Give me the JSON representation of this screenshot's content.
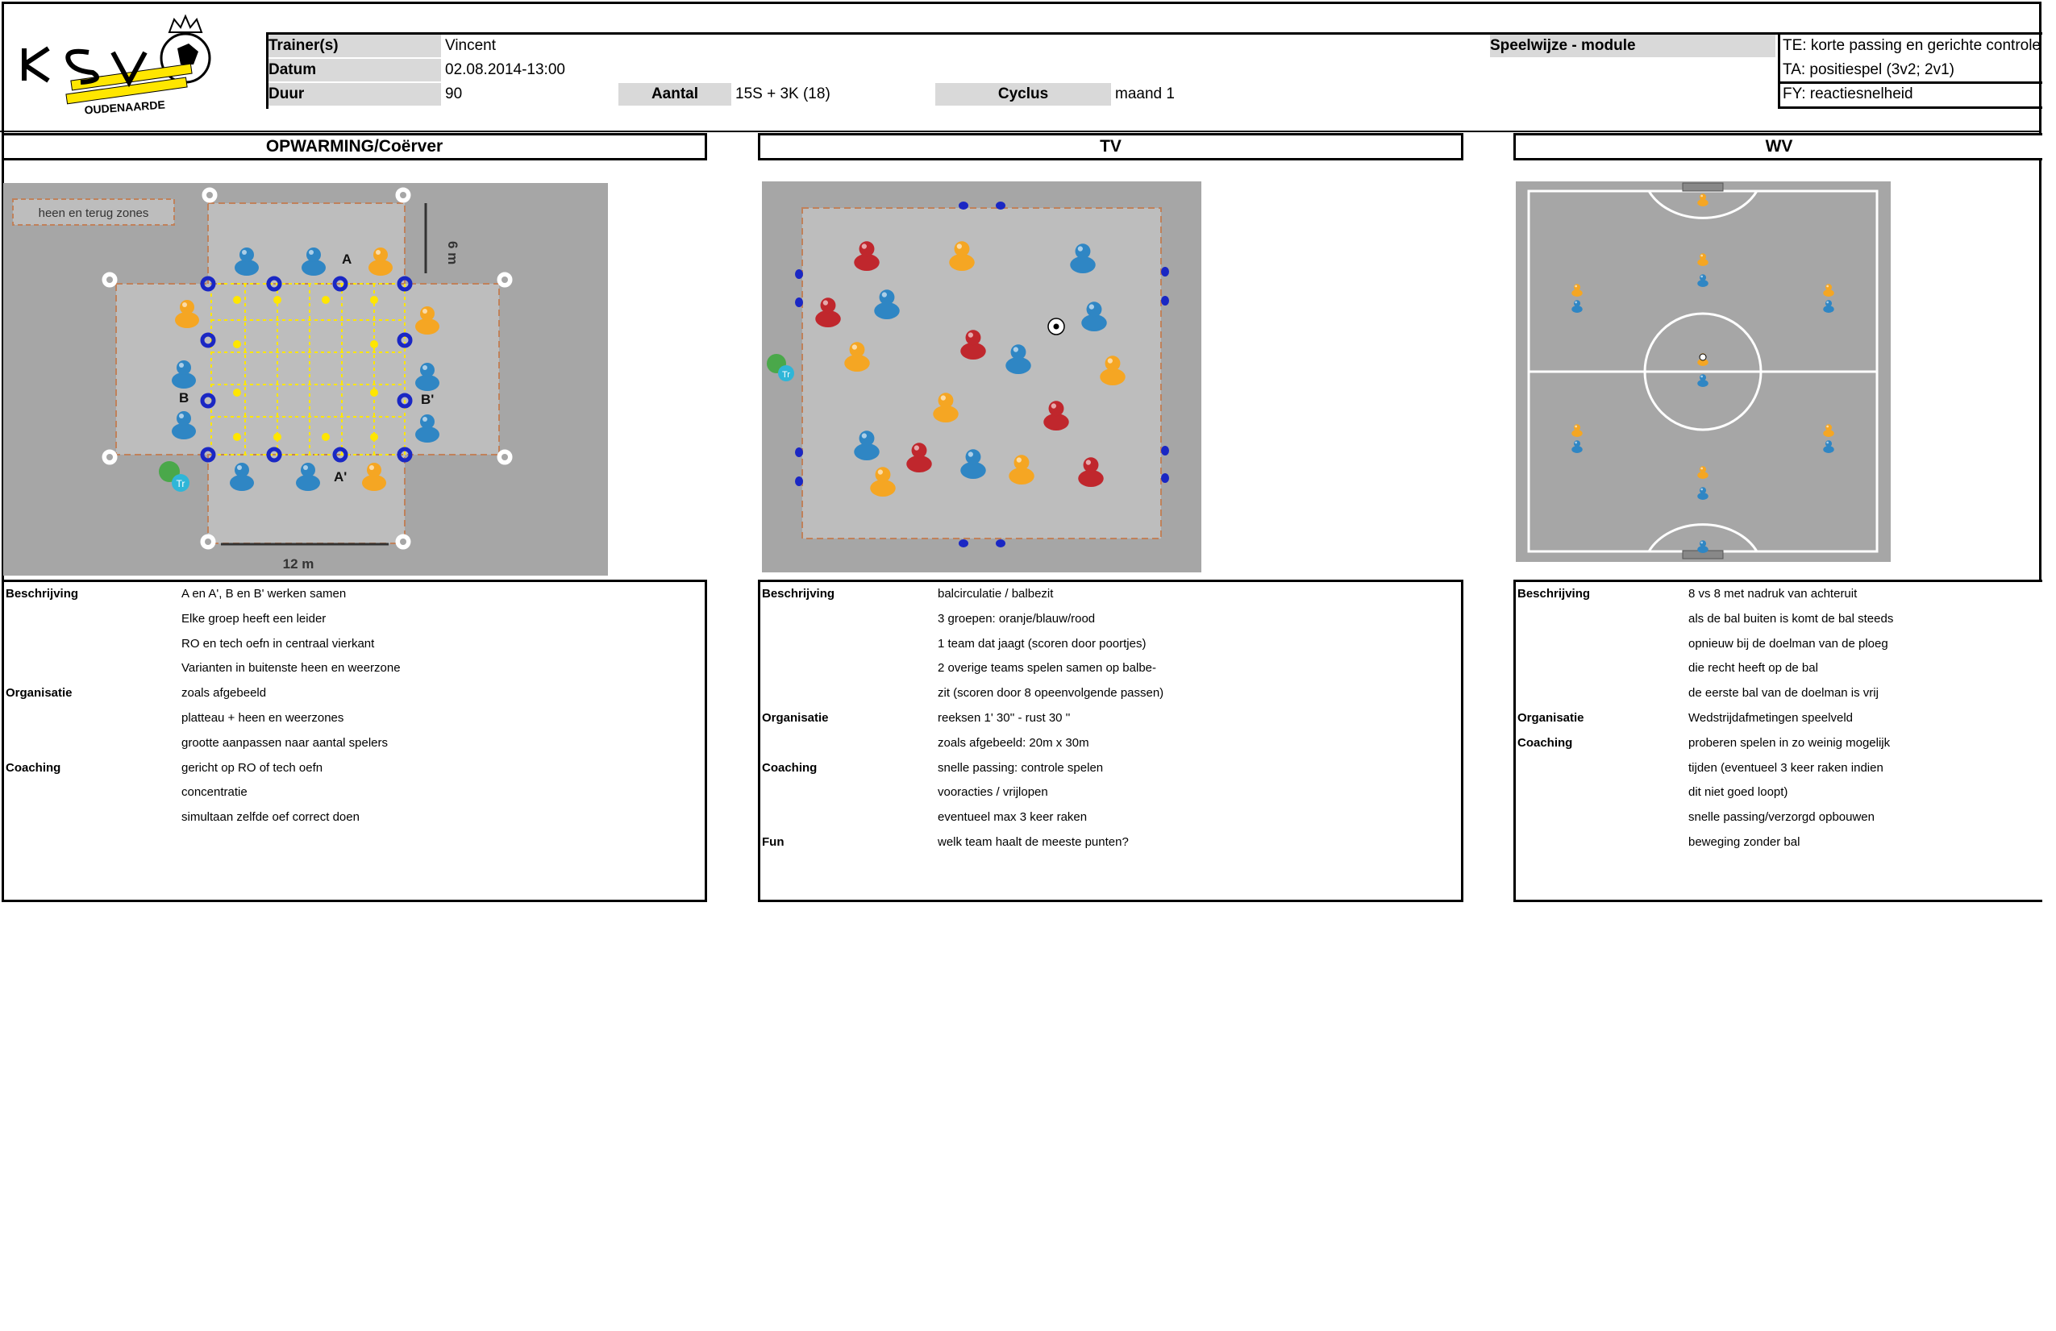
{
  "club": {
    "logo_text": "KSV",
    "logo_city": "OUDENAARDE"
  },
  "header": {
    "trainer_label": "Trainer(s)",
    "trainer_value": "Vincent",
    "datum_label": "Datum",
    "datum_value": "02.08.2014-13:00",
    "duur_label": "Duur",
    "duur_value": "90",
    "aantal_label": "Aantal",
    "aantal_value": "15S + 3K (18)",
    "cyclus_label": "Cyclus",
    "cyclus_value": "maand 1",
    "speelwijze_label": "Speelwijze - module",
    "te": "TE: korte passing en gerichte controle",
    "ta": "TA: positiespel (3v2; 2v1)",
    "fy": "FY: reactiesnelheid"
  },
  "sections": [
    {
      "title": "OPWARMING/Coërver",
      "diagram": {
        "zone_label": "heen en terug zones",
        "dim_h": "6 m",
        "dim_w": "12 m",
        "labels": [
          "A",
          "B",
          "B'",
          "A'"
        ],
        "trainer": "Tr"
      },
      "rows": [
        {
          "k": "Beschrijving",
          "v": "A en A', B en B' werken samen"
        },
        {
          "k": "",
          "v": "Elke groep heeft een leider"
        },
        {
          "k": "",
          "v": "RO en tech oefn in centraal vierkant"
        },
        {
          "k": "",
          "v": "Varianten in buitenste heen en weerzone"
        },
        {
          "k": "Organisatie",
          "v": "zoals afgebeeld"
        },
        {
          "k": "",
          "v": "platteau + heen en weerzones"
        },
        {
          "k": "",
          "v": "grootte aanpassen naar aantal spelers"
        },
        {
          "k": "Coaching",
          "v": "gericht op RO of tech oefn"
        },
        {
          "k": "",
          "v": "concentratie"
        },
        {
          "k": "",
          "v": "simultaan zelfde oef correct doen"
        }
      ]
    },
    {
      "title": "TV",
      "diagram": {
        "trainer": "Tr"
      },
      "rows": [
        {
          "k": "Beschrijving",
          "v": "balcirculatie / balbezit"
        },
        {
          "k": "",
          "v": "3 groepen: oranje/blauw/rood"
        },
        {
          "k": "",
          "v": "1 team dat jaagt (scoren door poortjes)"
        },
        {
          "k": "",
          "v": "2 overige teams spelen samen op balbe-"
        },
        {
          "k": "",
          "v": "zit (scoren door 8 opeenvolgende passen)"
        },
        {
          "k": "Organisatie",
          "v": "reeksen 1' 30'' - rust 30 ''"
        },
        {
          "k": "",
          "v": "zoals afgebeeld: 20m x 30m"
        },
        {
          "k": "Coaching",
          "v": "snelle passing: controle spelen"
        },
        {
          "k": "",
          "v": "vooracties / vrijlopen"
        },
        {
          "k": "",
          "v": "eventueel max 3 keer raken"
        },
        {
          "k": "Fun",
          "v": "welk team haalt de meeste punten?"
        }
      ]
    },
    {
      "title": "WV",
      "diagram": {},
      "rows": [
        {
          "k": "Beschrijving",
          "v": "8 vs 8 met nadruk van achteruit"
        },
        {
          "k": "",
          "v": "als de bal buiten is komt de bal steeds"
        },
        {
          "k": "",
          "v": "opnieuw bij de doelman van de ploeg"
        },
        {
          "k": "",
          "v": "die recht heeft op de bal"
        },
        {
          "k": "",
          "v": "de eerste bal van de doelman is vrij"
        },
        {
          "k": "Organisatie",
          "v": "Wedstrijdafmetingen speelveld"
        },
        {
          "k": "Coaching",
          "v": "proberen spelen in zo weinig mogelijk"
        },
        {
          "k": "",
          "v": "tijden (eventueel 3 keer raken indien"
        },
        {
          "k": "",
          "v": "dit niet goed loopt)"
        },
        {
          "k": "",
          "v": "snelle passing/verzorgd opbouwen"
        },
        {
          "k": "",
          "v": "beweging zonder bal"
        }
      ]
    }
  ],
  "colors": {
    "orange": "#f5a623",
    "blue": "#2f86c4",
    "red": "#c0272d",
    "yellow": "#ffe600",
    "pitch": "#a6a6a6",
    "field": "#bdbdbd"
  }
}
